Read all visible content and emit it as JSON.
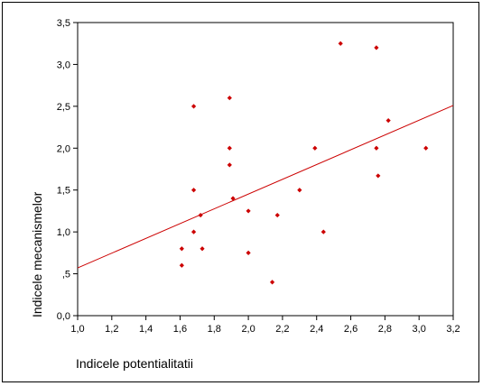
{
  "chart_data": {
    "type": "scatter",
    "xlabel": "Indicele potentialitatii",
    "ylabel": "Indicele mecanismelor",
    "xlim": [
      1.0,
      3.2
    ],
    "ylim": [
      0.0,
      3.5
    ],
    "x_ticks": [
      1.0,
      1.2,
      1.4,
      1.6,
      1.8,
      2.0,
      2.2,
      2.4,
      2.6,
      2.8,
      3.0,
      3.2
    ],
    "x_tick_labels": [
      "1,0",
      "1,2",
      "1,4",
      "1,6",
      "1,8",
      "2,0",
      "2,2",
      "2,4",
      "2,6",
      "2,8",
      "3,0",
      "3,2"
    ],
    "y_ticks": [
      0.0,
      0.5,
      1.0,
      1.5,
      2.0,
      2.5,
      3.0,
      3.5
    ],
    "y_tick_labels": [
      "0,0",
      ",5",
      "1,0",
      "1,5",
      "2,0",
      "2,5",
      "3,0",
      "3,5"
    ],
    "grid": false,
    "marker_color": "#cc0000",
    "line_color": "#cc0000",
    "points": [
      {
        "x": 1.61,
        "y": 0.8
      },
      {
        "x": 1.61,
        "y": 0.6
      },
      {
        "x": 1.68,
        "y": 2.5
      },
      {
        "x": 1.68,
        "y": 1.5
      },
      {
        "x": 1.68,
        "y": 1.0
      },
      {
        "x": 1.72,
        "y": 1.2
      },
      {
        "x": 1.73,
        "y": 0.8
      },
      {
        "x": 1.89,
        "y": 2.6
      },
      {
        "x": 1.89,
        "y": 2.0
      },
      {
        "x": 1.89,
        "y": 1.8
      },
      {
        "x": 1.91,
        "y": 1.4
      },
      {
        "x": 2.0,
        "y": 1.25
      },
      {
        "x": 2.0,
        "y": 0.75
      },
      {
        "x": 2.14,
        "y": 0.4
      },
      {
        "x": 2.17,
        "y": 1.2
      },
      {
        "x": 2.3,
        "y": 1.5
      },
      {
        "x": 2.39,
        "y": 2.0
      },
      {
        "x": 2.44,
        "y": 1.0
      },
      {
        "x": 2.54,
        "y": 3.25
      },
      {
        "x": 2.75,
        "y": 3.2
      },
      {
        "x": 2.75,
        "y": 2.0
      },
      {
        "x": 2.76,
        "y": 1.67
      },
      {
        "x": 2.82,
        "y": 2.33
      },
      {
        "x": 3.04,
        "y": 2.0
      }
    ],
    "fit_line": {
      "x": [
        1.0,
        3.2
      ],
      "y": [
        0.57,
        2.51
      ]
    }
  }
}
